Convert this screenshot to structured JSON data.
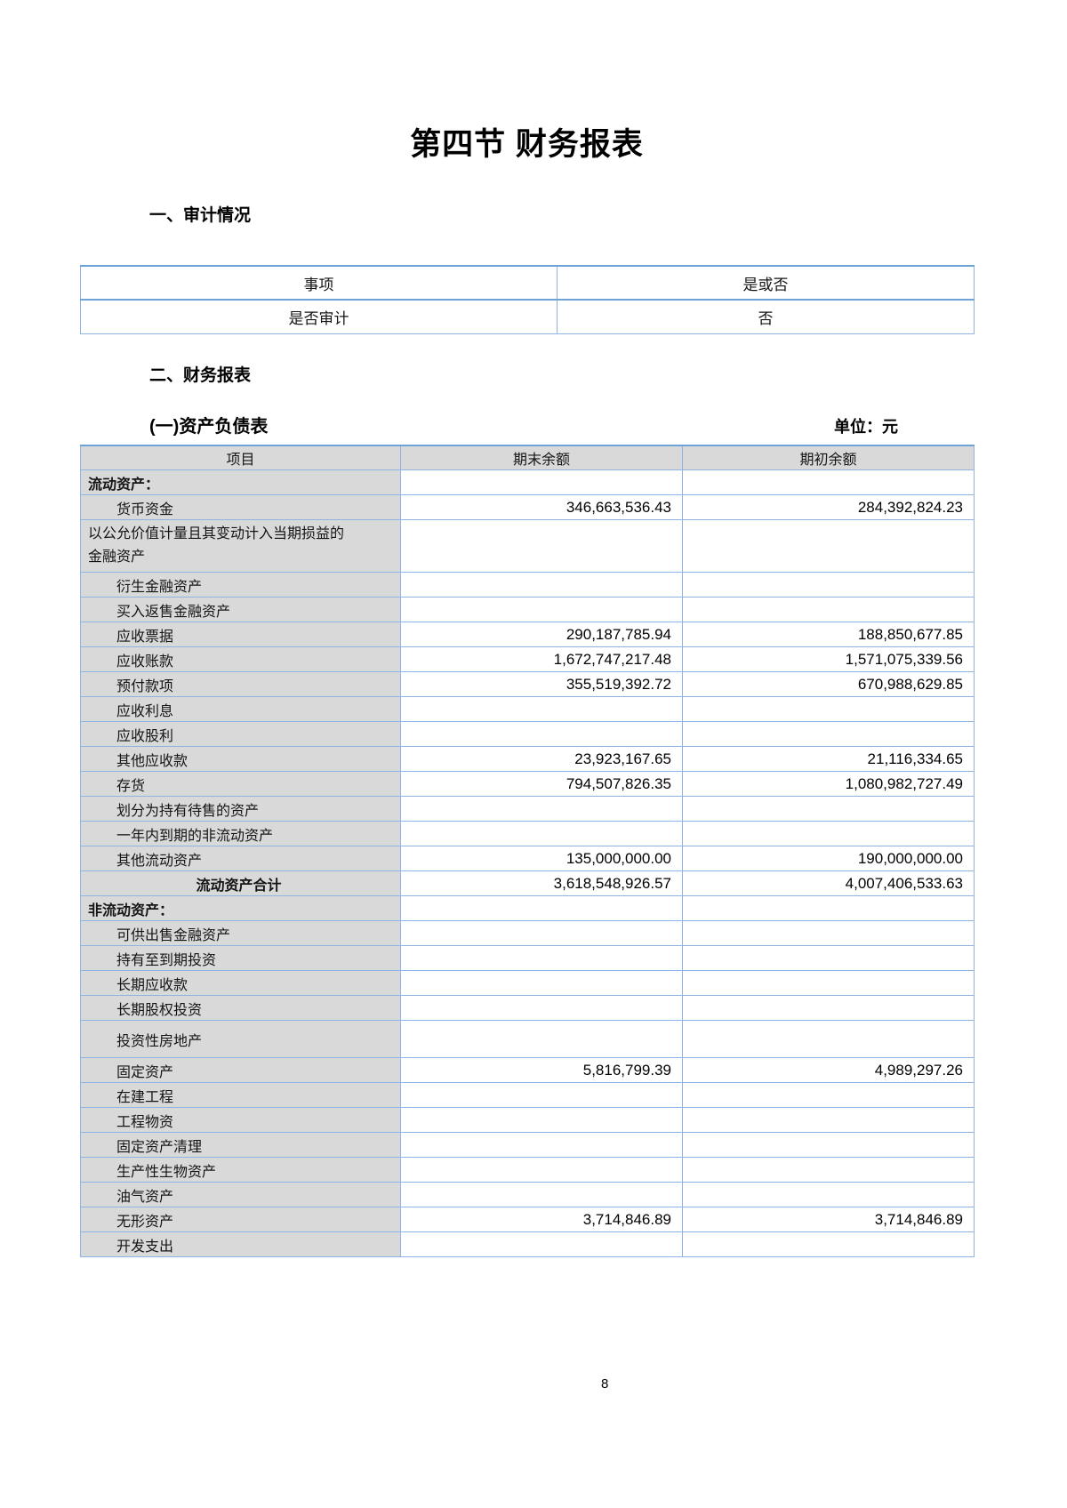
{
  "page": {
    "title": "第四节 财务报表",
    "page_number": "8"
  },
  "colors": {
    "table_border": "#8db4e2",
    "table_border_strong": "#6fa3d8",
    "header_fill": "#d9d9d9"
  },
  "audit_section": {
    "heading": "一、审计情况",
    "table": {
      "headers": [
        "事项",
        "是或否"
      ],
      "rows": [
        {
          "item": "是否审计",
          "answer": "否"
        }
      ]
    }
  },
  "statements_section": {
    "heading": "二、财务报表"
  },
  "balance_sheet": {
    "subheading": "(一)资产负债表",
    "unit_label": "单位：元",
    "headers": [
      "项目",
      "期末余额",
      "期初余额"
    ],
    "rows": [
      {
        "label": "流动资产：",
        "end": "",
        "begin": "",
        "style": "group"
      },
      {
        "label": "货币资金",
        "end": "346,663,536.43",
        "begin": "284,392,824.23",
        "style": "item"
      },
      {
        "label": "以公允价值计量且其变动计入当期损益的金融资产",
        "end": "",
        "begin": "",
        "style": "wrap"
      },
      {
        "label": "衍生金融资产",
        "end": "",
        "begin": "",
        "style": "item"
      },
      {
        "label": "买入返售金融资产",
        "end": "",
        "begin": "",
        "style": "item"
      },
      {
        "label": "应收票据",
        "end": "290,187,785.94",
        "begin": "188,850,677.85",
        "style": "item"
      },
      {
        "label": "应收账款",
        "end": "1,672,747,217.48",
        "begin": "1,571,075,339.56",
        "style": "item"
      },
      {
        "label": "预付款项",
        "end": "355,519,392.72",
        "begin": "670,988,629.85",
        "style": "item"
      },
      {
        "label": "应收利息",
        "end": "",
        "begin": "",
        "style": "item"
      },
      {
        "label": "应收股利",
        "end": "",
        "begin": "",
        "style": "item"
      },
      {
        "label": "其他应收款",
        "end": "23,923,167.65",
        "begin": "21,116,334.65",
        "style": "item"
      },
      {
        "label": "存货",
        "end": "794,507,826.35",
        "begin": "1,080,982,727.49",
        "style": "item"
      },
      {
        "label": "划分为持有待售的资产",
        "end": "",
        "begin": "",
        "style": "item"
      },
      {
        "label": "一年内到期的非流动资产",
        "end": "",
        "begin": "",
        "style": "item"
      },
      {
        "label": "其他流动资产",
        "end": "135,000,000.00",
        "begin": "190,000,000.00",
        "style": "item"
      },
      {
        "label": "流动资产合计",
        "end": "3,618,548,926.57",
        "begin": "4,007,406,533.63",
        "style": "total"
      },
      {
        "label": "非流动资产：",
        "end": "",
        "begin": "",
        "style": "group"
      },
      {
        "label": "可供出售金融资产",
        "end": "",
        "begin": "",
        "style": "item"
      },
      {
        "label": "持有至到期投资",
        "end": "",
        "begin": "",
        "style": "item"
      },
      {
        "label": "长期应收款",
        "end": "",
        "begin": "",
        "style": "item"
      },
      {
        "label": "长期股权投资",
        "end": "",
        "begin": "",
        "style": "item"
      },
      {
        "label": "投资性房地产",
        "end": "",
        "begin": "",
        "style": "item tall"
      },
      {
        "label": "固定资产",
        "end": "5,816,799.39",
        "begin": "4,989,297.26",
        "style": "item"
      },
      {
        "label": "在建工程",
        "end": "",
        "begin": "",
        "style": "item"
      },
      {
        "label": "工程物资",
        "end": "",
        "begin": "",
        "style": "item"
      },
      {
        "label": "固定资产清理",
        "end": "",
        "begin": "",
        "style": "item"
      },
      {
        "label": "生产性生物资产",
        "end": "",
        "begin": "",
        "style": "item"
      },
      {
        "label": "油气资产",
        "end": "",
        "begin": "",
        "style": "item"
      },
      {
        "label": "无形资产",
        "end": "3,714,846.89",
        "begin": "3,714,846.89",
        "style": "item"
      },
      {
        "label": "开发支出",
        "end": "",
        "begin": "",
        "style": "item"
      }
    ]
  }
}
